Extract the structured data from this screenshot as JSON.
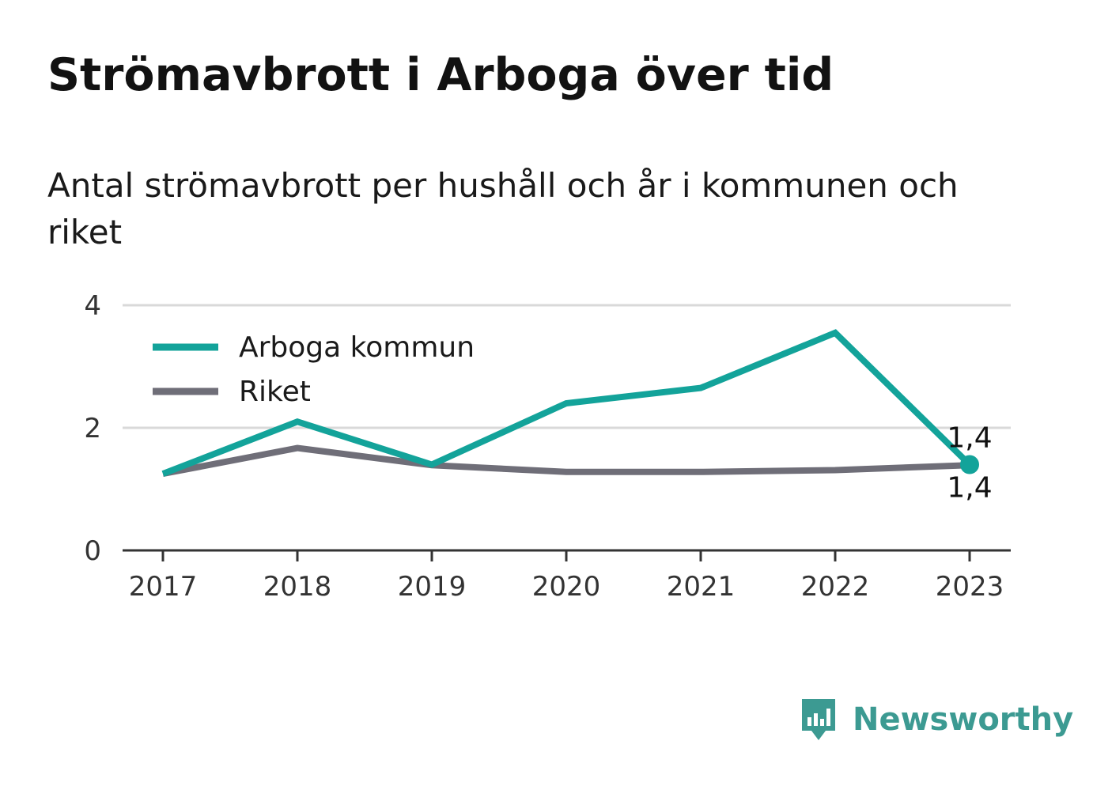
{
  "title": "Strömavbrott i Arboga över tid",
  "subtitle": "Antal strömavbrott per hushåll och år i kommunen och riket",
  "brand": {
    "name": "Newsworthy",
    "icon": "newsworthy-logo-icon"
  },
  "colors": {
    "arboga": "#13a39a",
    "riket": "#6f6e78",
    "grid": "#d9d9d9",
    "axis": "#333333",
    "brand": "#3c9a92"
  },
  "chart_data": {
    "type": "line",
    "title": "Strömavbrott i Arboga över tid",
    "subtitle": "Antal strömavbrott per hushåll och år i kommunen och riket",
    "xlabel": "",
    "ylabel": "",
    "x": [
      "2017",
      "2018",
      "2019",
      "2020",
      "2021",
      "2022",
      "2023"
    ],
    "ylim": [
      0,
      4
    ],
    "yticks": [
      "0",
      "2",
      "4"
    ],
    "grid": true,
    "legend_position": "top-left",
    "series": [
      {
        "name": "Arboga kommun",
        "color": "#13a39a",
        "values": [
          1.25,
          2.1,
          1.4,
          2.4,
          2.65,
          3.55,
          1.4
        ],
        "end_label": "1,4"
      },
      {
        "name": "Riket",
        "color": "#6f6e78",
        "values": [
          1.25,
          1.67,
          1.39,
          1.28,
          1.28,
          1.31,
          1.39
        ],
        "end_label": "1,4"
      }
    ]
  }
}
